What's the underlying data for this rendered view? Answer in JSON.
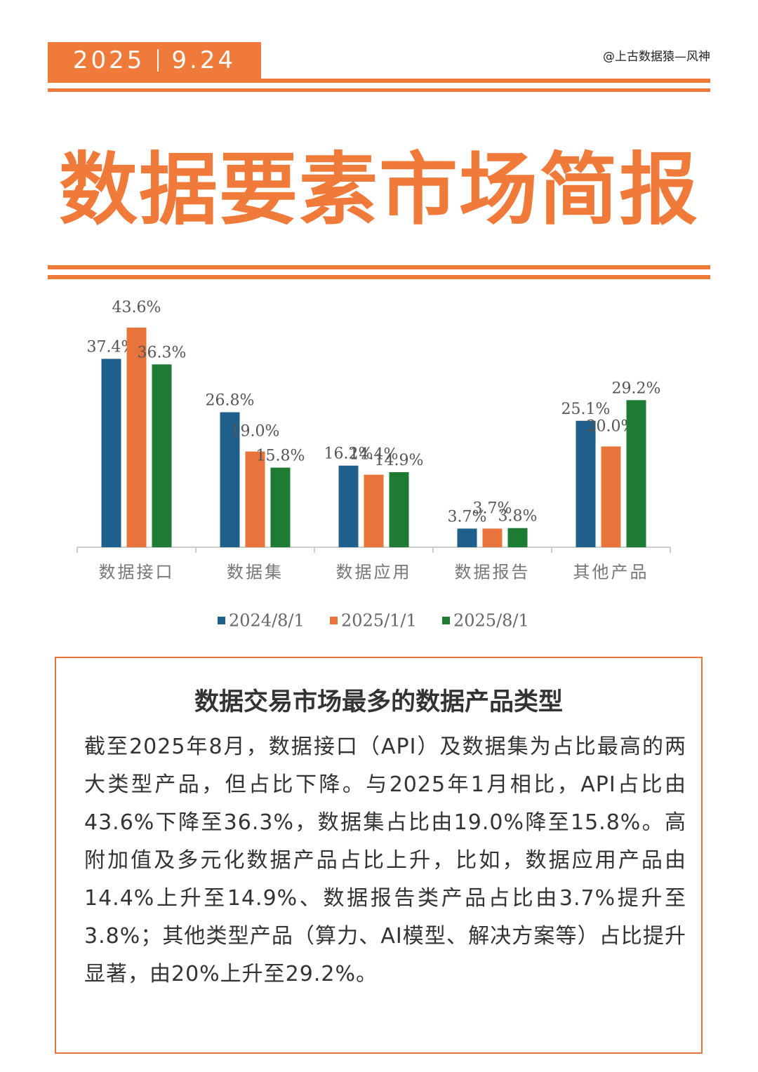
{
  "header": {
    "year": "2025",
    "date": "9.24",
    "author": "@上古数据猿—风神",
    "title": "数据要素市场简报"
  },
  "chart_data": {
    "type": "bar",
    "categories": [
      "数据接口",
      "数据集",
      "数据应用",
      "数据报告",
      "其他产品"
    ],
    "series": [
      {
        "name": "2024/8/1",
        "color": "#1f5f8b",
        "values": [
          37.4,
          26.8,
          16.2,
          3.7,
          25.1
        ],
        "value_labels": [
          "37.4%",
          "26.8%",
          "16.2%",
          "3.7%",
          "25.1%"
        ]
      },
      {
        "name": "2025/1/1",
        "color": "#e8743b",
        "values": [
          43.6,
          19.0,
          14.4,
          3.7,
          20.0
        ],
        "value_labels": [
          "43.6%",
          "19.0%",
          "14.4%",
          "3.7%",
          "20.0%"
        ]
      },
      {
        "name": "2025/8/1",
        "color": "#1e7b34",
        "values": [
          36.3,
          15.8,
          14.9,
          3.8,
          29.2
        ],
        "value_labels": [
          "36.3%",
          "15.8%",
          "14.9%",
          "3.8%",
          "29.2%"
        ]
      }
    ],
    "ylim": [
      0,
      50
    ]
  },
  "summary": {
    "title": "数据交易市场最多的数据产品类型",
    "text": "截至2025年8月，数据接口（API）及数据集为占比最高的两大类型产品，但占比下降。与2025年1月相比，API占比由43.6%下降至36.3%，数据集占比由19.0%降至15.8%。高附加值及多元化数据产品占比上升，比如，数据应用产品由14.4%上升至14.9%、数据报告类产品占比由3.7%提升至3.8%；其他类型产品（算力、AI模型、解决方案等）占比提升显著，由20%上升至29.2%。"
  }
}
